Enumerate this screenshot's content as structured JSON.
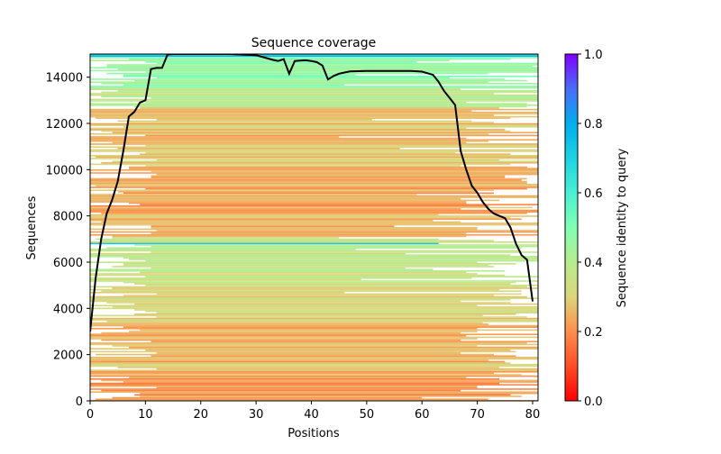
{
  "chart_data": {
    "type": "heatmap",
    "title": "Sequence coverage",
    "xlabel": "Positions",
    "ylabel": "Sequences",
    "xlim": [
      0,
      81
    ],
    "ylim": [
      0,
      15000
    ],
    "xticks": [
      0,
      10,
      20,
      30,
      40,
      50,
      60,
      70,
      80
    ],
    "yticks": [
      0,
      2000,
      4000,
      6000,
      8000,
      10000,
      12000,
      14000
    ],
    "colorbar": {
      "label": "Sequence identity to query",
      "ticks": [
        "0.0",
        "0.2",
        "0.4",
        "0.6",
        "0.8",
        "1.0"
      ],
      "range": [
        0,
        1
      ],
      "colormap": "rainbow_r"
    },
    "coverage_line": {
      "name": "coverage",
      "color": "#000000",
      "x": [
        0,
        1,
        2,
        3,
        4,
        5,
        6,
        7,
        8,
        9,
        10,
        11,
        12,
        13,
        14,
        15,
        20,
        25,
        30,
        33,
        34,
        35,
        36,
        37,
        38,
        39,
        40,
        41,
        42,
        43,
        44,
        45,
        46,
        47,
        50,
        55,
        58,
        60,
        62,
        63,
        64,
        65,
        66,
        67,
        68,
        69,
        70,
        71,
        72,
        73,
        74,
        75,
        76,
        77,
        78,
        79,
        80
      ],
      "y": [
        3000,
        5300,
        7000,
        8100,
        8700,
        9500,
        10800,
        12300,
        12500,
        12900,
        13000,
        14350,
        14400,
        14400,
        14980,
        15000,
        15000,
        15000,
        14950,
        14750,
        14700,
        14780,
        14150,
        14700,
        14720,
        14730,
        14700,
        14650,
        14500,
        13900,
        14050,
        14150,
        14200,
        14250,
        14270,
        14270,
        14270,
        14240,
        14100,
        13800,
        13400,
        13100,
        12800,
        10800,
        10000,
        9300,
        9000,
        8600,
        8300,
        8100,
        8000,
        7900,
        7500,
        6800,
        6300,
        6100,
        4300
      ]
    },
    "row_bands": [
      {
        "from": 14900,
        "to": 15000,
        "identity": 0.75
      },
      {
        "from": 13600,
        "to": 14900,
        "identity": 0.47
      },
      {
        "from": 12700,
        "to": 13600,
        "identity": 0.38
      },
      {
        "from": 10000,
        "to": 12700,
        "identity": 0.27
      },
      {
        "from": 7100,
        "to": 10000,
        "identity": 0.24
      },
      {
        "from": 6850,
        "to": 7100,
        "identity": 0.38
      },
      {
        "from": 6800,
        "to": 6850,
        "identity": 0.7
      },
      {
        "from": 5000,
        "to": 6800,
        "identity": 0.36
      },
      {
        "from": 3500,
        "to": 5000,
        "identity": 0.31
      },
      {
        "from": 1000,
        "to": 3500,
        "identity": 0.26
      },
      {
        "from": 0,
        "to": 1000,
        "identity": 0.2
      }
    ]
  }
}
